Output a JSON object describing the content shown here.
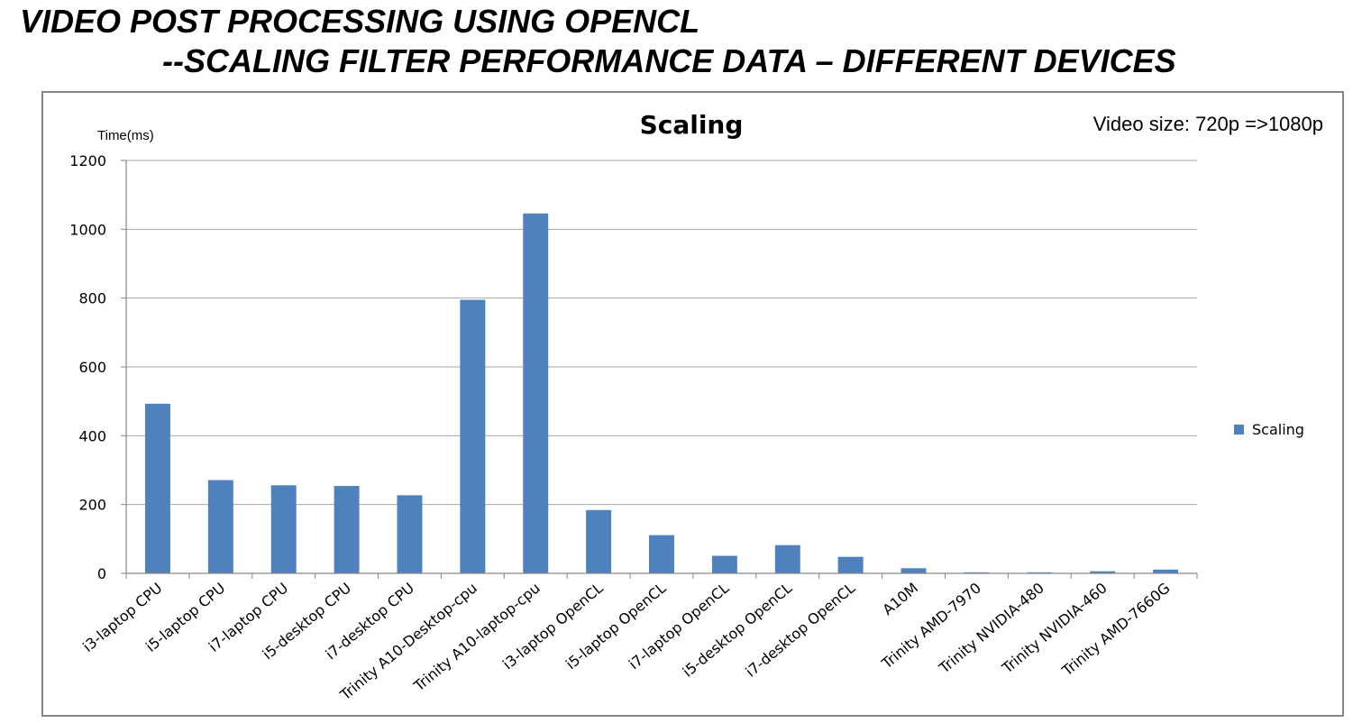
{
  "slide": {
    "title_line1": "VIDEO POST PROCESSING USING OPENCL",
    "title_line2": "--SCALING FILTER PERFORMANCE DATA – DIFFERENT DEVICES"
  },
  "chart_data": {
    "type": "bar",
    "title": "Scaling",
    "annotation": "Video size: 720p =>1080p",
    "ylabel": "Time(ms)",
    "xlabel": "",
    "ylim": [
      0,
      1200
    ],
    "yticks": [
      0,
      200,
      400,
      600,
      800,
      1000,
      1200
    ],
    "grid": true,
    "legend": "right",
    "categories": [
      "i3-laptop CPU",
      "i5-laptop CPU",
      "i7-laptop CPU",
      "i5-desktop CPU",
      "i7-desktop CPU",
      "Trinity A10-Desktop-cpu",
      "Trinity A10-laptop-cpu",
      "i3-laptop OpenCL",
      "i5-laptop OpenCL",
      "i7-laptop OpenCL",
      "i5-desktop OpenCL",
      "i7-desktop OpenCL",
      "A10M",
      "Trinity AMD-7970",
      "Trinity NVIDIA-480",
      "Trinity NVIDIA-460",
      "Trinity AMD-7660G"
    ],
    "series": [
      {
        "name": "Scaling",
        "color": "#4f81bd",
        "values": [
          493,
          271,
          256,
          254,
          227,
          795,
          1046,
          184,
          111,
          51,
          82,
          48,
          15,
          3,
          3,
          6,
          11
        ]
      }
    ]
  }
}
